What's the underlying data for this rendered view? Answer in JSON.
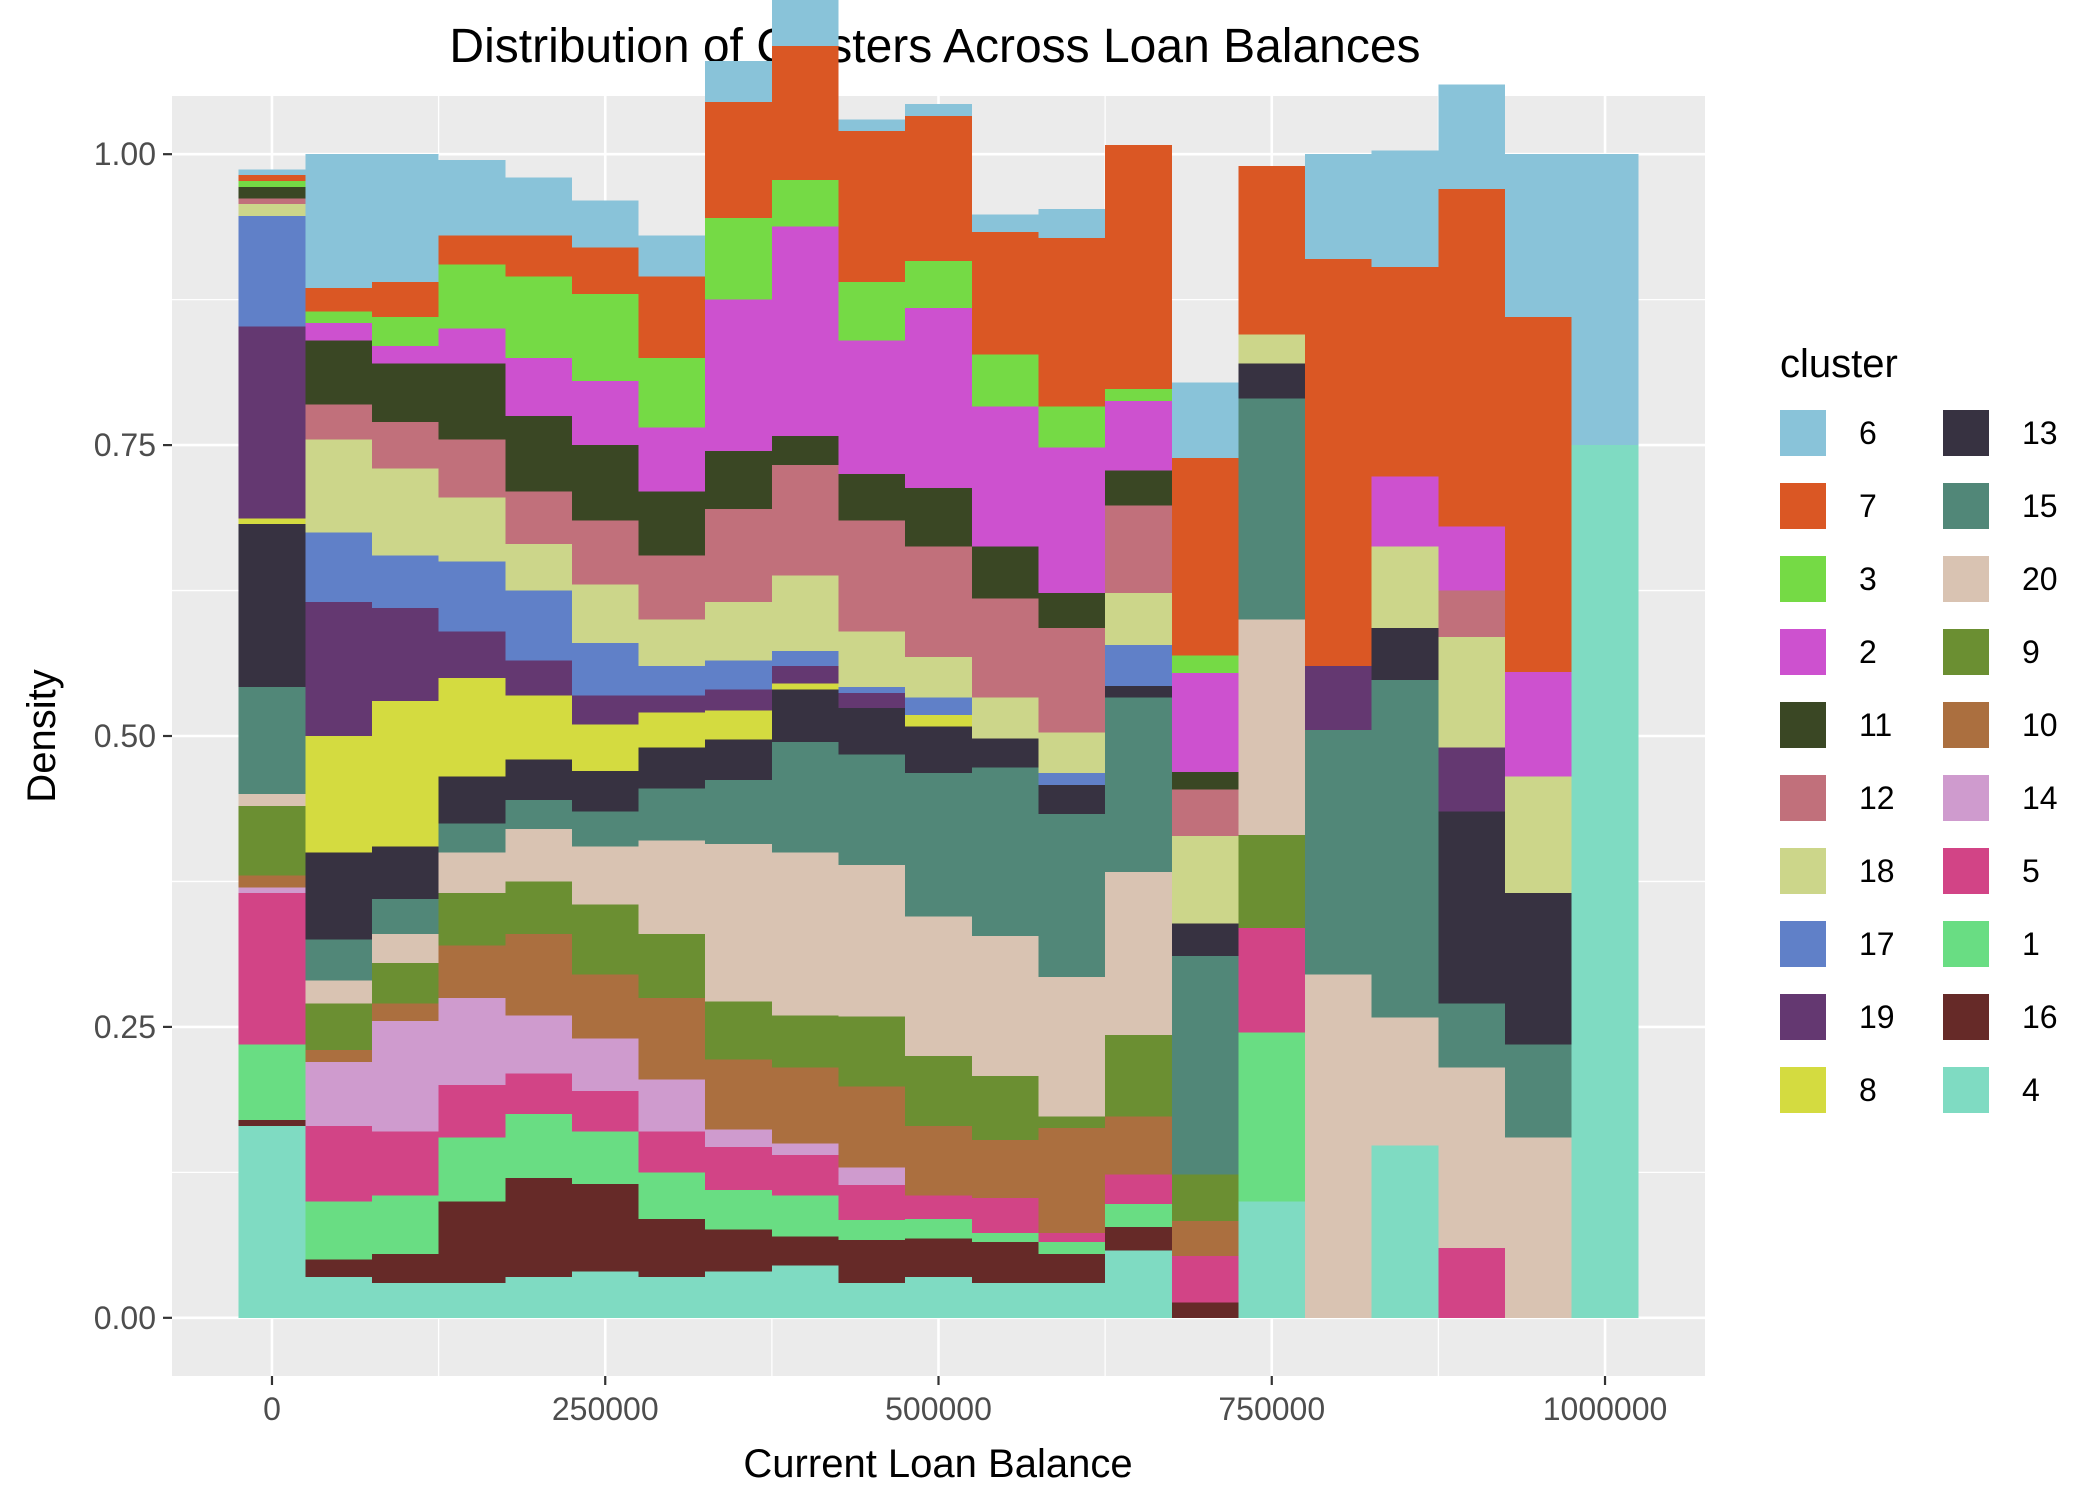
{
  "chart_data": {
    "type": "area",
    "title": "Distribution of Clusters Across Loan Balances",
    "xlabel": "Current Loan Balance",
    "ylabel": "Density",
    "xlim": [
      -75000,
      1075000
    ],
    "ylim": [
      -0.05,
      1.05
    ],
    "x_ticks": [
      0,
      250000,
      500000,
      750000,
      1000000
    ],
    "x_tick_labels": [
      "0",
      "250000",
      "500000",
      "750000",
      "1000000"
    ],
    "y_ticks": [
      0,
      0.25,
      0.5,
      0.75,
      1.0
    ],
    "y_tick_labels": [
      "0.00",
      "0.25",
      "0.50",
      "0.75",
      "1.00"
    ],
    "grid": true,
    "legend": {
      "title": "cluster",
      "position": "right",
      "columns": 2
    },
    "x": [
      0,
      50000,
      100000,
      150000,
      200000,
      250000,
      300000,
      350000,
      400000,
      450000,
      500000,
      550000,
      600000,
      650000,
      700000,
      750000,
      800000,
      850000,
      900000,
      950000,
      1000000
    ],
    "bin_width": 50000,
    "series": [
      {
        "name": "4",
        "color": "#7FDBC2",
        "values": [
          0.165,
          0.035,
          0.03,
          0.03,
          0.035,
          0.04,
          0.035,
          0.04,
          0.045,
          0.03,
          0.035,
          0.03,
          0.03,
          0.058,
          0.0,
          0.1,
          0.0,
          0.148,
          0.0,
          0.0,
          0.75
        ]
      },
      {
        "name": "16",
        "color": "#662A28",
        "values": [
          0.005,
          0.015,
          0.025,
          0.07,
          0.085,
          0.075,
          0.05,
          0.036,
          0.025,
          0.037,
          0.033,
          0.035,
          0.025,
          0.02,
          0.013,
          0.0,
          0.0,
          0.0,
          0.0,
          0.0,
          0.0
        ]
      },
      {
        "name": "1",
        "color": "#69DD83",
        "values": [
          0.065,
          0.05,
          0.05,
          0.055,
          0.055,
          0.045,
          0.04,
          0.034,
          0.035,
          0.017,
          0.017,
          0.008,
          0.01,
          0.02,
          0.0,
          0.145,
          0.0,
          0.0,
          0.0,
          0.0,
          0.0
        ]
      },
      {
        "name": "5",
        "color": "#D24486",
        "values": [
          0.13,
          0.065,
          0.055,
          0.045,
          0.035,
          0.035,
          0.035,
          0.037,
          0.035,
          0.03,
          0.02,
          0.03,
          0.008,
          0.025,
          0.04,
          0.09,
          0.0,
          0.0,
          0.06,
          0.0,
          0.0
        ]
      },
      {
        "name": "14",
        "color": "#CF9BCE",
        "values": [
          0.005,
          0.055,
          0.095,
          0.075,
          0.05,
          0.045,
          0.045,
          0.015,
          0.01,
          0.015,
          0.0,
          0.0,
          0.0,
          0.0,
          0.0,
          0.0,
          0.0,
          0.0,
          0.0,
          0.0,
          0.0
        ]
      },
      {
        "name": "10",
        "color": "#AB6F3F",
        "values": [
          0.01,
          0.01,
          0.015,
          0.045,
          0.07,
          0.055,
          0.07,
          0.06,
          0.065,
          0.07,
          0.06,
          0.05,
          0.09,
          0.05,
          0.03,
          0.0,
          0.0,
          0.0,
          0.0,
          0.0,
          0.0
        ]
      },
      {
        "name": "9",
        "color": "#6B8F32",
        "values": [
          0.06,
          0.04,
          0.035,
          0.045,
          0.045,
          0.06,
          0.055,
          0.05,
          0.045,
          0.06,
          0.06,
          0.055,
          0.01,
          0.07,
          0.04,
          0.08,
          0.0,
          0.0,
          0.0,
          0.0,
          0.0
        ]
      },
      {
        "name": "20",
        "color": "#D9C3B2",
        "values": [
          0.01,
          0.02,
          0.025,
          0.035,
          0.045,
          0.05,
          0.08,
          0.135,
          0.14,
          0.13,
          0.12,
          0.12,
          0.12,
          0.14,
          0.0,
          0.185,
          0.295,
          0.11,
          0.155,
          0.155,
          0.0
        ]
      },
      {
        "name": "15",
        "color": "#518778",
        "values": [
          0.092,
          0.035,
          0.03,
          0.025,
          0.025,
          0.03,
          0.045,
          0.055,
          0.095,
          0.095,
          0.123,
          0.145,
          0.14,
          0.15,
          0.188,
          0.19,
          0.21,
          0.29,
          0.055,
          0.08,
          0.0
        ]
      },
      {
        "name": "13",
        "color": "#373241",
        "values": [
          0.14,
          0.075,
          0.045,
          0.04,
          0.035,
          0.035,
          0.035,
          0.035,
          0.045,
          0.04,
          0.04,
          0.025,
          0.025,
          0.01,
          0.028,
          0.03,
          0.0,
          0.045,
          0.165,
          0.13,
          0.0
        ]
      },
      {
        "name": "8",
        "color": "#D4DB40",
        "values": [
          0.005,
          0.1,
          0.125,
          0.085,
          0.055,
          0.04,
          0.03,
          0.025,
          0.005,
          0.0,
          0.01,
          0.0,
          0.0,
          0.0,
          0.0,
          0.0,
          0.0,
          0.0,
          0.0,
          0.0,
          0.0
        ]
      },
      {
        "name": "19",
        "color": "#643871",
        "values": [
          0.165,
          0.115,
          0.08,
          0.04,
          0.03,
          0.025,
          0.015,
          0.018,
          0.015,
          0.013,
          0.0,
          0.0,
          0.0,
          0.0,
          0.0,
          0.0,
          0.055,
          0.0,
          0.055,
          0.0,
          0.0
        ]
      },
      {
        "name": "17",
        "color": "#6080C8",
        "values": [
          0.095,
          0.06,
          0.045,
          0.06,
          0.06,
          0.045,
          0.025,
          0.025,
          0.013,
          0.005,
          0.015,
          0.0,
          0.01,
          0.035,
          0.0,
          0.0,
          0.0,
          0.0,
          0.0,
          0.0,
          0.0
        ]
      },
      {
        "name": "18",
        "color": "#CCD68A",
        "values": [
          0.01,
          0.08,
          0.075,
          0.055,
          0.04,
          0.05,
          0.04,
          0.05,
          0.065,
          0.048,
          0.035,
          0.035,
          0.035,
          0.045,
          0.075,
          0.025,
          0.0,
          0.07,
          0.095,
          0.1,
          0.0
        ]
      },
      {
        "name": "12",
        "color": "#C1707B",
        "values": [
          0.005,
          0.03,
          0.04,
          0.05,
          0.045,
          0.055,
          0.055,
          0.08,
          0.095,
          0.095,
          0.095,
          0.085,
          0.09,
          0.075,
          0.04,
          0.0,
          0.0,
          0.0,
          0.04,
          0.0,
          0.0
        ]
      },
      {
        "name": "11",
        "color": "#3A4724",
        "values": [
          0.01,
          0.055,
          0.05,
          0.065,
          0.065,
          0.065,
          0.055,
          0.05,
          0.025,
          0.04,
          0.05,
          0.045,
          0.03,
          0.03,
          0.015,
          0.0,
          0.0,
          0.0,
          0.0,
          0.0,
          0.0
        ]
      },
      {
        "name": "2",
        "color": "#CD51CF",
        "values": [
          0.0,
          0.015,
          0.015,
          0.03,
          0.05,
          0.055,
          0.055,
          0.13,
          0.18,
          0.115,
          0.155,
          0.12,
          0.125,
          0.06,
          0.085,
          0.0,
          0.0,
          0.06,
          0.055,
          0.09,
          0.0
        ]
      },
      {
        "name": "3",
        "color": "#75DA45",
        "values": [
          0.005,
          0.01,
          0.025,
          0.055,
          0.07,
          0.075,
          0.06,
          0.07,
          0.04,
          0.05,
          0.04,
          0.045,
          0.035,
          0.01,
          0.015,
          0.0,
          0.0,
          0.0,
          0.0,
          0.0,
          0.0
        ]
      },
      {
        "name": "7",
        "color": "#DA5724",
        "values": [
          0.005,
          0.02,
          0.03,
          0.025,
          0.035,
          0.04,
          0.07,
          0.1,
          0.115,
          0.13,
          0.125,
          0.105,
          0.145,
          0.21,
          0.17,
          0.145,
          0.35,
          0.18,
          0.29,
          0.305,
          0.0
        ]
      },
      {
        "name": "6",
        "color": "#89C3D9",
        "values": [
          0.005,
          0.115,
          0.11,
          0.065,
          0.05,
          0.04,
          0.035,
          0.035,
          0.04,
          0.01,
          0.01,
          0.015,
          0.025,
          0.0,
          0.065,
          0.0,
          0.09,
          0.1,
          0.09,
          0.14,
          0.25
        ]
      }
    ],
    "legend_order": [
      "6",
      "7",
      "3",
      "2",
      "11",
      "12",
      "18",
      "17",
      "19",
      "8",
      "13",
      "15",
      "20",
      "9",
      "10",
      "14",
      "5",
      "1",
      "16",
      "4"
    ]
  }
}
